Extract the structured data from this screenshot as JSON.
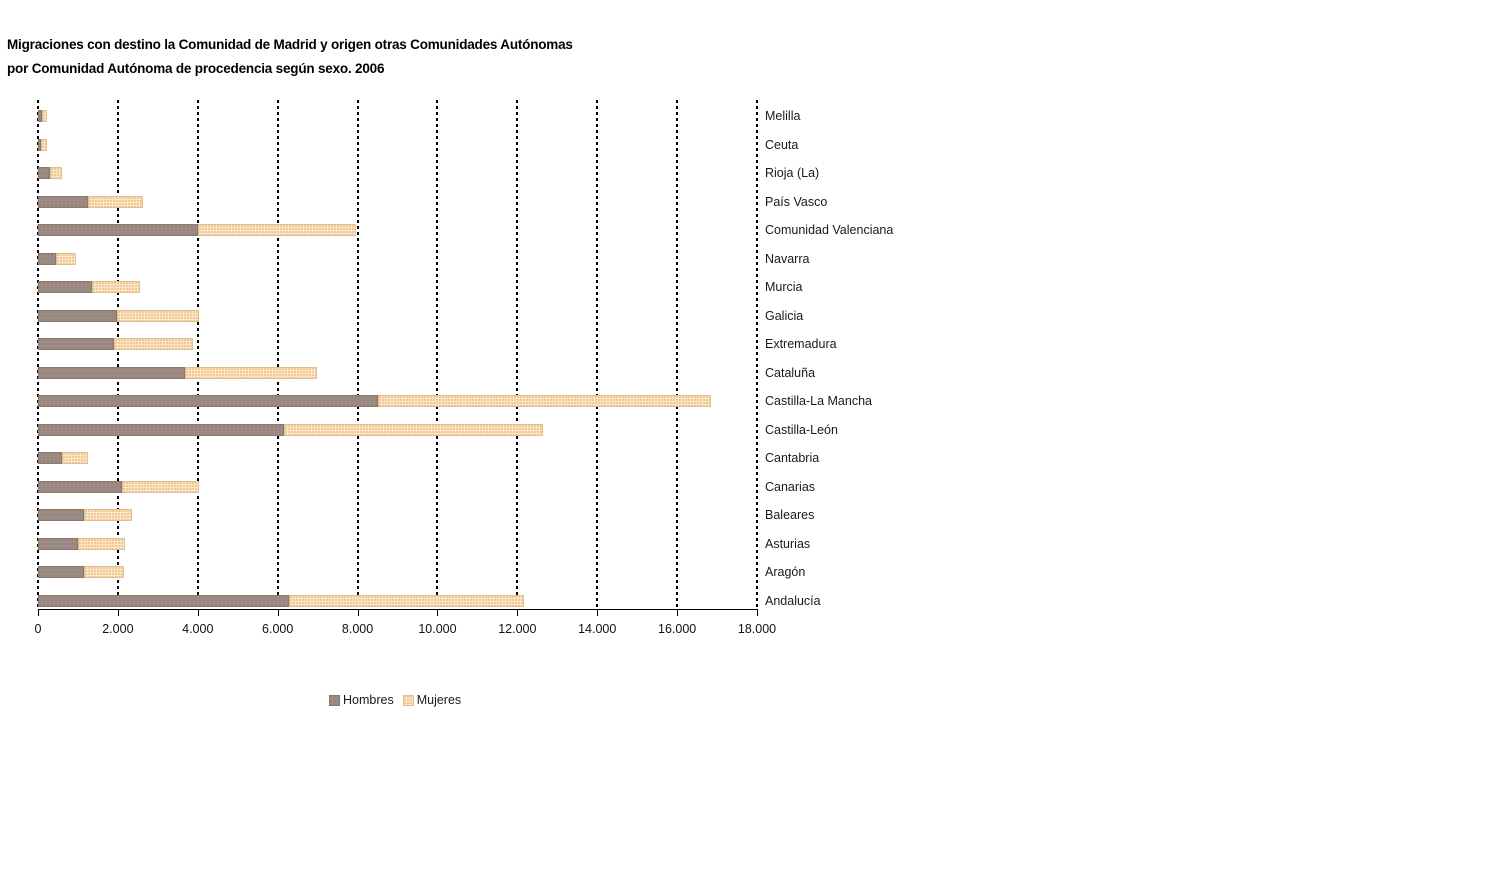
{
  "title": {
    "line1": "Migraciones con destino la Comunidad de Madrid y origen otras Comunidades Autónomas",
    "line2": "por Comunidad Autónoma de procedencia según sexo. 2006"
  },
  "colors": {
    "hombres": "#9a9083",
    "mujeres": "#f8e6c9",
    "hombres_border": "#857a6d",
    "mujeres_border": "#e0bf95",
    "grid": "#000000",
    "axis": "#000000",
    "text": "#1a1a1a",
    "background": "#ffffff"
  },
  "chart_data": {
    "type": "bar",
    "orientation": "horizontal",
    "stacked": true,
    "title": "Migraciones con destino la Comunidad de Madrid y origen otras Comunidades Autónomas por Comunidad Autónoma de procedencia según sexo. 2006",
    "category_order": "top-to-bottom",
    "categories": [
      "Melilla",
      "Ceuta",
      "Rioja (La)",
      "País Vasco",
      "Comunidad Valenciana",
      "Navarra",
      "Murcia",
      "Galicia",
      "Extremadura",
      "Cataluña",
      "Castilla-La Mancha",
      "Castilla-León",
      "Cantabria",
      "Canarias",
      "Baleares",
      "Asturias",
      "Aragón",
      "Andalucía"
    ],
    "series": [
      {
        "name": "Hombres",
        "color": "#9a9083",
        "values": [
          100,
          70,
          310,
          1240,
          4000,
          460,
          1340,
          1970,
          1900,
          3680,
          8500,
          6170,
          610,
          2110,
          1160,
          1010,
          1150,
          6290
        ]
      },
      {
        "name": "Mujeres",
        "color": "#f8e6c9",
        "values": [
          130,
          150,
          280,
          1380,
          3950,
          500,
          1220,
          2070,
          1970,
          3300,
          8350,
          6480,
          640,
          1920,
          1190,
          1160,
          1000,
          5870
        ]
      }
    ],
    "xlabel": "",
    "ylabel": "",
    "xlim": [
      0,
      18000
    ],
    "xticks": [
      0,
      2000,
      4000,
      6000,
      8000,
      10000,
      12000,
      14000,
      16000,
      18000
    ],
    "xtick_labels": [
      "0",
      "2.000",
      "4.000",
      "6.000",
      "8.000",
      "10.000",
      "12.000",
      "14.000",
      "16.000",
      "18.000"
    ],
    "grid": "vertical-dashed",
    "legend_position": "bottom"
  },
  "legend": {
    "items": [
      {
        "label": "Hombres",
        "color": "#9a9083"
      },
      {
        "label": "Mujeres",
        "color": "#f8e6c9"
      }
    ]
  }
}
